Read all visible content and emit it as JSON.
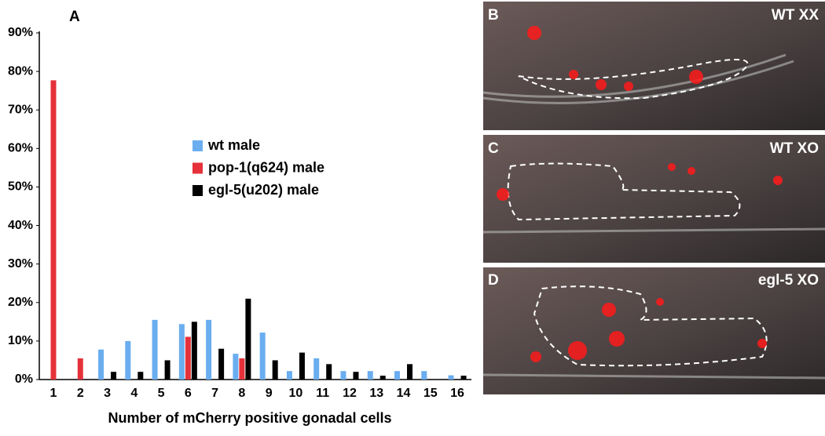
{
  "chart_data": {
    "type": "bar",
    "panel_label": "A",
    "xlabel": "Number of mCherry positive gonadal cells",
    "categories": [
      "1",
      "2",
      "3",
      "4",
      "5",
      "6",
      "7",
      "8",
      "9",
      "10",
      "11",
      "12",
      "13",
      "14",
      "15",
      "16"
    ],
    "series": [
      {
        "name": "wt male",
        "color": "#6aaef0",
        "values": [
          0,
          0,
          7.8,
          10,
          15.5,
          14.4,
          15.5,
          6.7,
          12.2,
          2.2,
          5.5,
          2.2,
          2.2,
          2.2,
          2.2,
          1.1
        ]
      },
      {
        "name": "pop-1(q624) male",
        "color": "#e5313a",
        "values": [
          77.7,
          5.5,
          0,
          0,
          0,
          11.1,
          0,
          5.5,
          0,
          0,
          0,
          0,
          0,
          0,
          0,
          0
        ]
      },
      {
        "name": "egl-5(u202) male",
        "color": "#000000",
        "values": [
          0,
          0,
          2,
          2,
          5,
          15,
          8,
          21,
          5,
          7,
          4,
          2,
          1,
          4,
          0,
          1
        ]
      }
    ],
    "ylim": [
      0,
      90
    ],
    "yticks": [
      {
        "value": 0,
        "label": "0%"
      },
      {
        "value": 10,
        "label": "10%"
      },
      {
        "value": 20,
        "label": "20%"
      },
      {
        "value": 30,
        "label": "30%"
      },
      {
        "value": 40,
        "label": "40%"
      },
      {
        "value": 50,
        "label": "50%"
      },
      {
        "value": 60,
        "label": "60%"
      },
      {
        "value": 70,
        "label": "70%"
      },
      {
        "value": 80,
        "label": "80%"
      },
      {
        "value": 90,
        "label": "90%"
      }
    ],
    "grid": false
  },
  "panels": [
    {
      "label": "B",
      "caption": "WT XX"
    },
    {
      "label": "C",
      "caption": "WT XO"
    },
    {
      "label": "D",
      "caption": "egl-5 XO"
    }
  ]
}
